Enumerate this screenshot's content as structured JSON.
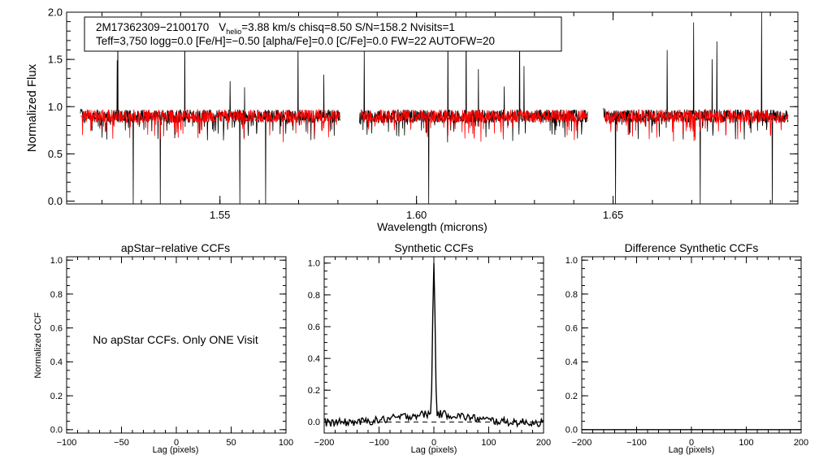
{
  "chart_data": [
    {
      "id": "spectrum",
      "type": "line",
      "xlabel": "Wavelength (microns)",
      "ylabel": "Normalized Flux",
      "xlim": [
        1.511,
        1.697
      ],
      "ylim": [
        -0.03,
        2.0
      ],
      "xticks": [
        1.55,
        1.6,
        1.65
      ],
      "xtick_labels": [
        "1.55",
        "1.60",
        "1.65"
      ],
      "yticks": [
        0.0,
        0.5,
        1.0,
        1.5,
        2.0
      ],
      "ytick_labels": [
        "0.0",
        "0.5",
        "1.0",
        "1.5",
        "2.0"
      ],
      "chips": [
        [
          1.5145,
          1.5805
        ],
        [
          1.5855,
          1.6435
        ],
        [
          1.6475,
          1.6945
        ]
      ],
      "series": [
        {
          "name": "observed",
          "color": "#000000"
        },
        {
          "name": "model",
          "color": "#ff0000"
        }
      ],
      "annotation": {
        "id": "2M17362309−2100170",
        "vlabel": "V",
        "vsub": "helio",
        "line1_rest": "=3.88 km/s  chisq=8.50  S/N=158.2  Nvisits=1",
        "line2": "Teff=3,750 logg=0.0 [Fe/H]=−0.50 [alpha/Fe]=0.0 [C/Fe]=0.0 FW=22 AUTOFW=20"
      }
    },
    {
      "id": "apstar-ccf",
      "type": "line",
      "title": "apStar−relative CCFs",
      "xlabel": "Lag (pixels)",
      "ylabel": "Normalized CCF",
      "xlim": [
        -100,
        100
      ],
      "ylim": [
        -0.02,
        1.02
      ],
      "xticks": [
        -100,
        -50,
        0,
        50,
        100
      ],
      "xtick_labels": [
        "−100",
        "−50",
        "0",
        "50",
        "100"
      ],
      "yticks": [
        0.0,
        0.2,
        0.4,
        0.6,
        0.8,
        1.0
      ],
      "ytick_labels": [
        "0.0",
        "0.2",
        "0.4",
        "0.6",
        "0.8",
        "1.0"
      ],
      "message": "No apStar CCFs.  Only ONE Visit"
    },
    {
      "id": "synthetic-ccf",
      "type": "line",
      "title": "Synthetic CCFs",
      "xlabel": "Lag (pixels)",
      "xlim": [
        -200,
        200
      ],
      "ylim": [
        -0.07,
        1.04
      ],
      "xticks": [
        -200,
        -100,
        0,
        100,
        200
      ],
      "xtick_labels": [
        "−200",
        "−100",
        "0",
        "100",
        "200"
      ],
      "yticks": [
        0.0,
        0.2,
        0.4,
        0.6,
        0.8,
        1.0
      ],
      "ytick_labels": [
        "0.0",
        "0.2",
        "0.4",
        "0.6",
        "0.8",
        "1.0"
      ],
      "peak_lag": 0,
      "peak_value": 1.0,
      "baseline": 0.0
    },
    {
      "id": "difference-ccf",
      "type": "line",
      "title": "Difference Synthetic CCFs",
      "xlabel": "Lag (pixels)",
      "xlim": [
        -200,
        200
      ],
      "ylim": [
        -0.02,
        1.02
      ],
      "xticks": [
        -200,
        -100,
        0,
        100,
        200
      ],
      "xtick_labels": [
        "−200",
        "−100",
        "0",
        "100",
        "200"
      ],
      "yticks": [
        0.0,
        0.2,
        0.4,
        0.6,
        0.8,
        1.0
      ],
      "ytick_labels": [
        "0.0",
        "0.2",
        "0.4",
        "0.6",
        "0.8",
        "1.0"
      ],
      "flat_value": 0.0
    }
  ]
}
